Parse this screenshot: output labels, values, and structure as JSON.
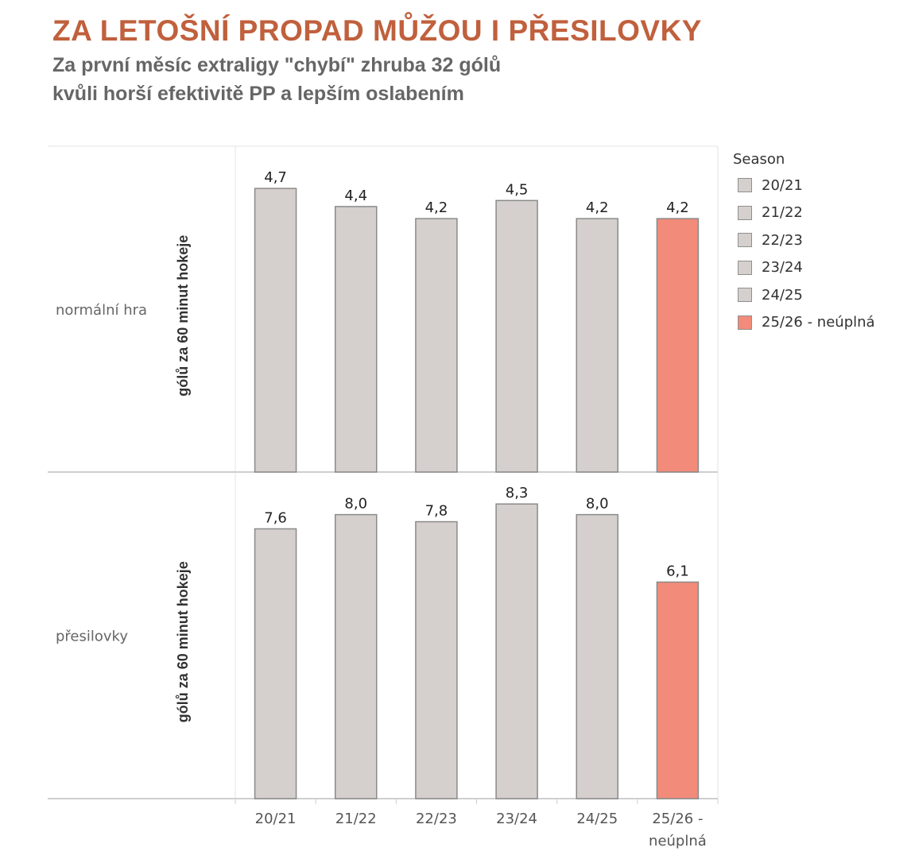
{
  "header": {
    "title": "ZA LETOŠNÍ PROPAD MŮŽOU I PŘESILOVKY",
    "subtitle_line1": "Za první měsíc extraligy \"chybí\" zhruba 32 gólů",
    "subtitle_line2": "kvůli horší efektivitě PP a lepším oslabením"
  },
  "colors": {
    "base_bar": "#d5d0cd",
    "highlight_bar": "#f28b7a",
    "title": "#c0603d"
  },
  "legend": {
    "title": "Season",
    "items": [
      "20/21",
      "21/22",
      "22/23",
      "23/24",
      "24/25",
      "25/26 - neúplná"
    ]
  },
  "chart_data": {
    "type": "bar",
    "categories": [
      "20/21",
      "21/22",
      "22/23",
      "23/24",
      "24/25",
      "25/26 - neúplná"
    ],
    "category_tick_lines": [
      [
        "20/21"
      ],
      [
        "21/22"
      ],
      [
        "22/23"
      ],
      [
        "23/24"
      ],
      [
        "24/25"
      ],
      [
        "25/26 -",
        "neúplná"
      ]
    ],
    "highlight_category": "25/26 - neúplná",
    "ylabel": "gólů za 60 minut hokeje",
    "panels": [
      {
        "name": "normální hra",
        "values": [
          4.7,
          4.4,
          4.2,
          4.5,
          4.2,
          4.2
        ],
        "labels": [
          "4,7",
          "4,4",
          "4,2",
          "4,5",
          "4,2",
          "4,2"
        ],
        "ylim": [
          0,
          5.4
        ]
      },
      {
        "name": "přesilovky",
        "values": [
          7.6,
          8.0,
          7.8,
          8.3,
          8.0,
          6.1
        ],
        "labels": [
          "7,6",
          "8,0",
          "7,8",
          "8,3",
          "8,0",
          "6,1"
        ],
        "ylim": [
          0,
          9.2
        ]
      }
    ],
    "grid": false
  }
}
